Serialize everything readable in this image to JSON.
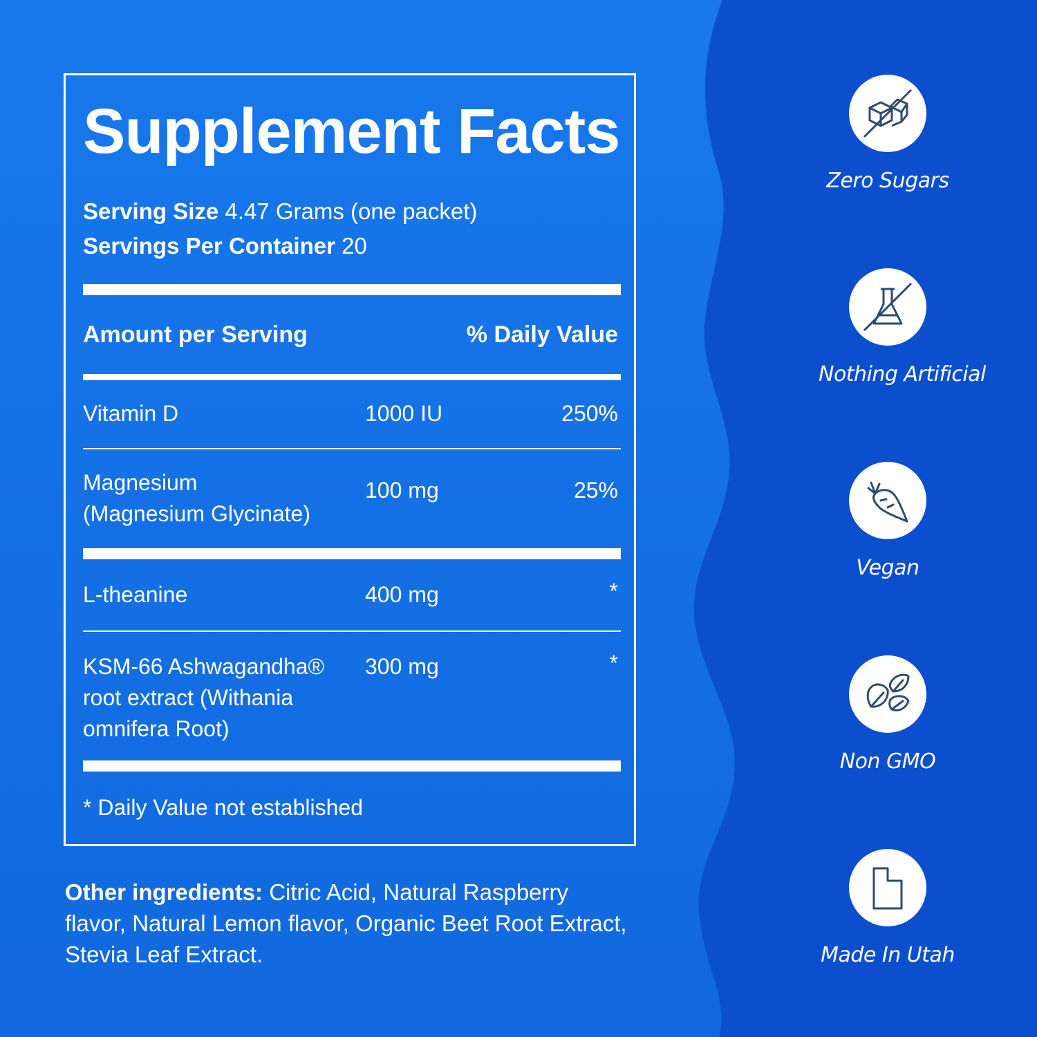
{
  "colors": {
    "background": "#1574e8",
    "panel": "#0b4fcf",
    "foreground": "#ffffff",
    "icon": "#2f4a6b"
  },
  "facts": {
    "title": "Supplement Facts",
    "serving_size_label": "Serving Size",
    "serving_size_value": "4.47 Grams (one packet)",
    "servings_label": "Servings Per Container",
    "servings_value": "20",
    "amount_header": "Amount per Serving",
    "dv_header": "% Daily Value",
    "rows": [
      {
        "name": "Vitamin D",
        "amount": "1000 IU",
        "dv": "250%"
      },
      {
        "name": "Magnesium\n(Magnesium Glycinate)",
        "amount": "100 mg",
        "dv": "25%"
      },
      {
        "name": "L-theanine",
        "amount": "400 mg",
        "dv": "*"
      },
      {
        "name": "KSM-66 Ashwagandha®\nroot extract (Withania\nomnifera Root)",
        "amount": "300 mg",
        "dv": "*"
      }
    ],
    "footnote": "* Daily Value not established"
  },
  "other": {
    "label": "Other ingredients:",
    "text": " Citric Acid, Natural Raspberry flavor, Natural Lemon flavor, Organic Beet Root Extract, Stevia Leaf Extract."
  },
  "badges": [
    {
      "label": "Zero Sugars",
      "icon": "sugar-cubes-crossed-icon"
    },
    {
      "label": "Nothing Artificial",
      "icon": "flask-crossed-icon"
    },
    {
      "label": "Vegan",
      "icon": "carrot-icon"
    },
    {
      "label": "Non GMO",
      "icon": "leaves-icon"
    },
    {
      "label": "Made In Utah",
      "icon": "utah-map-icon"
    }
  ]
}
